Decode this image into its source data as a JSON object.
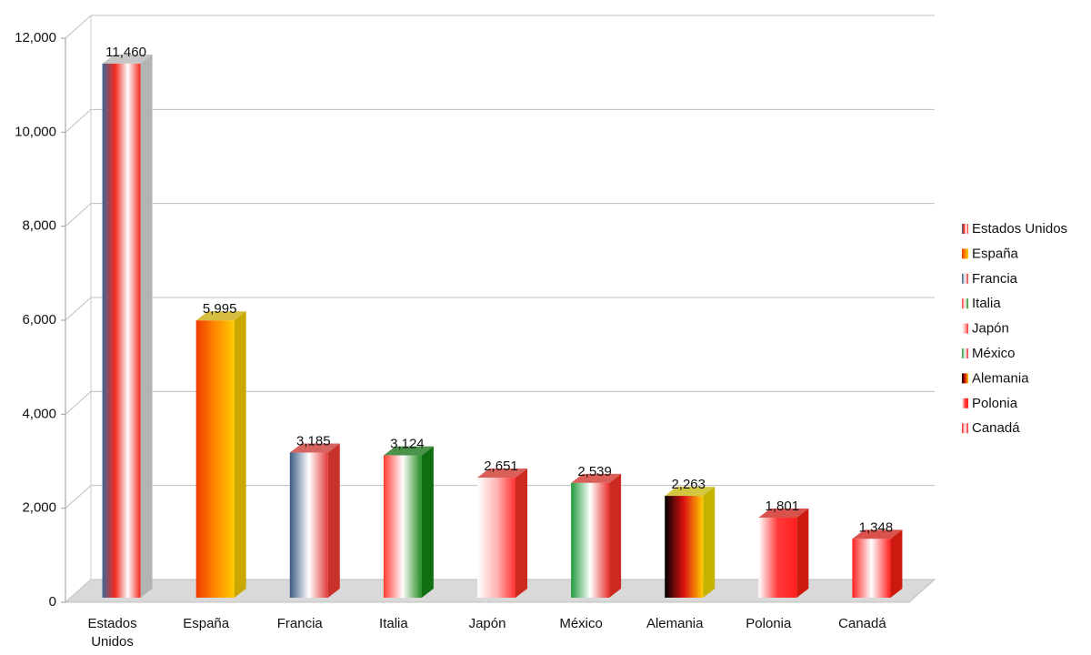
{
  "chart_data": {
    "type": "bar3d",
    "categories": [
      "Estados Unidos",
      "España",
      "Francia",
      "Italia",
      "Japón",
      "México",
      "Alemania",
      "Polonia",
      "Canadá"
    ],
    "values": [
      11460,
      5995,
      3185,
      3124,
      2651,
      2539,
      2263,
      1801,
      1348
    ],
    "value_labels": [
      "11,460",
      "5,995",
      "3,185",
      "3,124",
      "2,651",
      "2,539",
      "2,263",
      "1,801",
      "1,348"
    ],
    "colors": [
      [
        "#3d6797",
        "#f22a1e",
        "#ffffff",
        "#f22a1e"
      ],
      [
        "#f03a00",
        "#ff8800",
        "#ffcc00"
      ],
      [
        "#3c5a85",
        "#ffffff",
        "#e33a3a"
      ],
      [
        "#ff3a30",
        "#ffffff",
        "#1f8a1f"
      ],
      [
        "#ffffff",
        "#ffb6b6",
        "#ff3030"
      ],
      [
        "#1f9a3a",
        "#ffffff",
        "#e83030"
      ],
      [
        "#000000",
        "#dd1111",
        "#ffcc00"
      ],
      [
        "#ffffff",
        "#ff3a3a",
        "#ff2020"
      ],
      [
        "#ff2020",
        "#ffffff",
        "#ff2020"
      ]
    ],
    "side_colors": [
      "#b3b3b3",
      "#c9a800",
      "#c8322a",
      "#0f6e0f",
      "#cc2a20",
      "#cc2a20",
      "#c4b400",
      "#cc1a10",
      "#cc1a10"
    ],
    "ylim": [
      0,
      12000
    ],
    "yticks": [
      0,
      {
        "value": 2000,
        "label": "2,000"
      },
      {
        "value": 4000,
        "label": "4,000"
      },
      {
        "value": 6000,
        "label": "6,000"
      },
      {
        "value": 8000,
        "label": "8,000"
      },
      {
        "value": 10000,
        "label": "10,000"
      },
      {
        "value": 12000,
        "label": "12,000"
      }
    ],
    "grid": true,
    "legend": "right"
  }
}
